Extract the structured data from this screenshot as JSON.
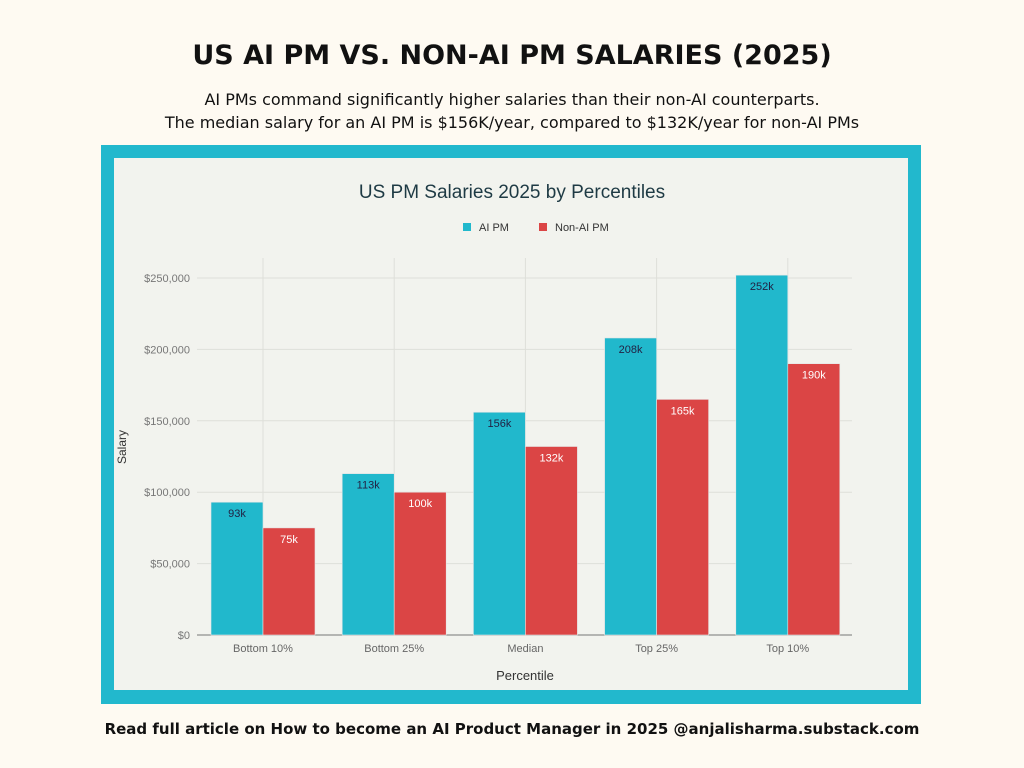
{
  "header": {
    "title": "US AI PM VS. NON-AI PM SALARIES (2025)",
    "subtitle_line1": "AI PMs command significantly higher salaries than their non-AI counterparts.",
    "subtitle_line2": "The median salary for an AI PM is $156K/year, compared to $132K/year for non-AI PMs"
  },
  "footer": "Read full article on How to become an AI Product Manager in 2025 @anjalisharma.substack.com",
  "chart_data": {
    "type": "bar",
    "title": "US PM Salaries 2025 by Percentiles",
    "xlabel": "Percentile",
    "ylabel": "Salary",
    "ylim": [
      0,
      250000
    ],
    "yticks": [
      0,
      50000,
      100000,
      150000,
      200000,
      250000
    ],
    "ytick_labels": [
      "$0",
      "$50,000",
      "$100,000",
      "$150,000",
      "$200,000",
      "$250,000"
    ],
    "categories": [
      "Bottom 10%",
      "Bottom 25%",
      "Median",
      "Top 25%",
      "Top 10%"
    ],
    "legend_position": "top-center",
    "grid": true,
    "series": [
      {
        "name": "AI PM",
        "color": "#21b8cc",
        "values": [
          93000,
          113000,
          156000,
          208000,
          252000
        ],
        "labels": [
          "93k",
          "113k",
          "156k",
          "208k",
          "252k"
        ]
      },
      {
        "name": "Non-AI PM",
        "color": "#db4545",
        "values": [
          75000,
          100000,
          132000,
          165000,
          190000
        ],
        "labels": [
          "75k",
          "100k",
          "132k",
          "165k",
          "190k"
        ]
      }
    ]
  }
}
